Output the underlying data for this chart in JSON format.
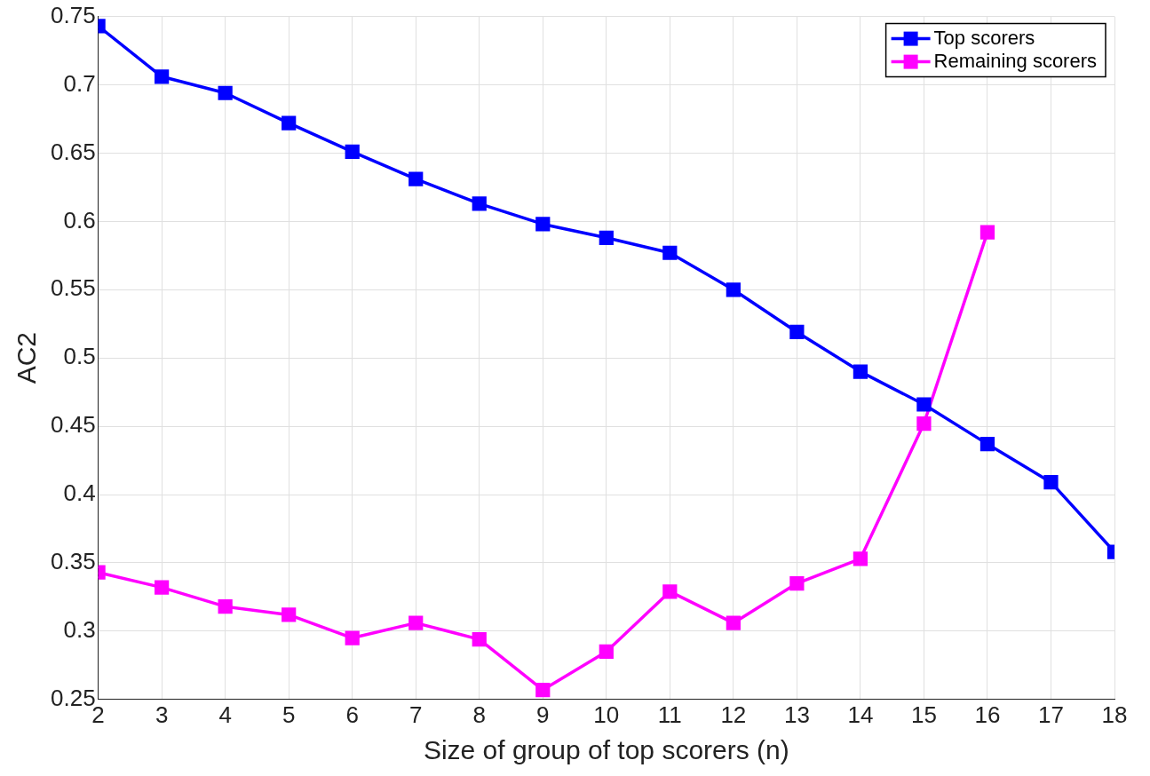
{
  "chart_data": {
    "type": "line",
    "xlabel": "Size of group of top scorers (n)",
    "ylabel": "AC2",
    "x": [
      2,
      3,
      4,
      5,
      6,
      7,
      8,
      9,
      10,
      11,
      12,
      13,
      14,
      15,
      16,
      17,
      18
    ],
    "series": [
      {
        "name": "Top scorers",
        "color": "#0000ff",
        "values": [
          0.743,
          0.706,
          0.694,
          0.672,
          0.651,
          0.631,
          0.613,
          0.598,
          0.588,
          0.577,
          0.55,
          0.519,
          0.49,
          0.466,
          0.437,
          0.409,
          0.358
        ]
      },
      {
        "name": "Remaining scorers",
        "color": "#ff00ff",
        "values": [
          0.343,
          0.332,
          0.318,
          0.312,
          0.295,
          0.306,
          0.294,
          0.257,
          0.285,
          0.329,
          0.306,
          0.335,
          0.353,
          0.452,
          0.592,
          null,
          null
        ]
      }
    ],
    "xlim": [
      2,
      18
    ],
    "xticks": [
      2,
      3,
      4,
      5,
      6,
      7,
      8,
      9,
      10,
      11,
      12,
      13,
      14,
      15,
      16,
      17,
      18
    ],
    "ylim": [
      0.25,
      0.75
    ],
    "yticks": [
      0.25,
      0.3,
      0.35,
      0.4,
      0.45,
      0.5,
      0.55,
      0.6,
      0.65,
      0.7,
      0.75
    ],
    "grid": true,
    "legend": "top right",
    "marker": "square",
    "line_style": "solid"
  }
}
